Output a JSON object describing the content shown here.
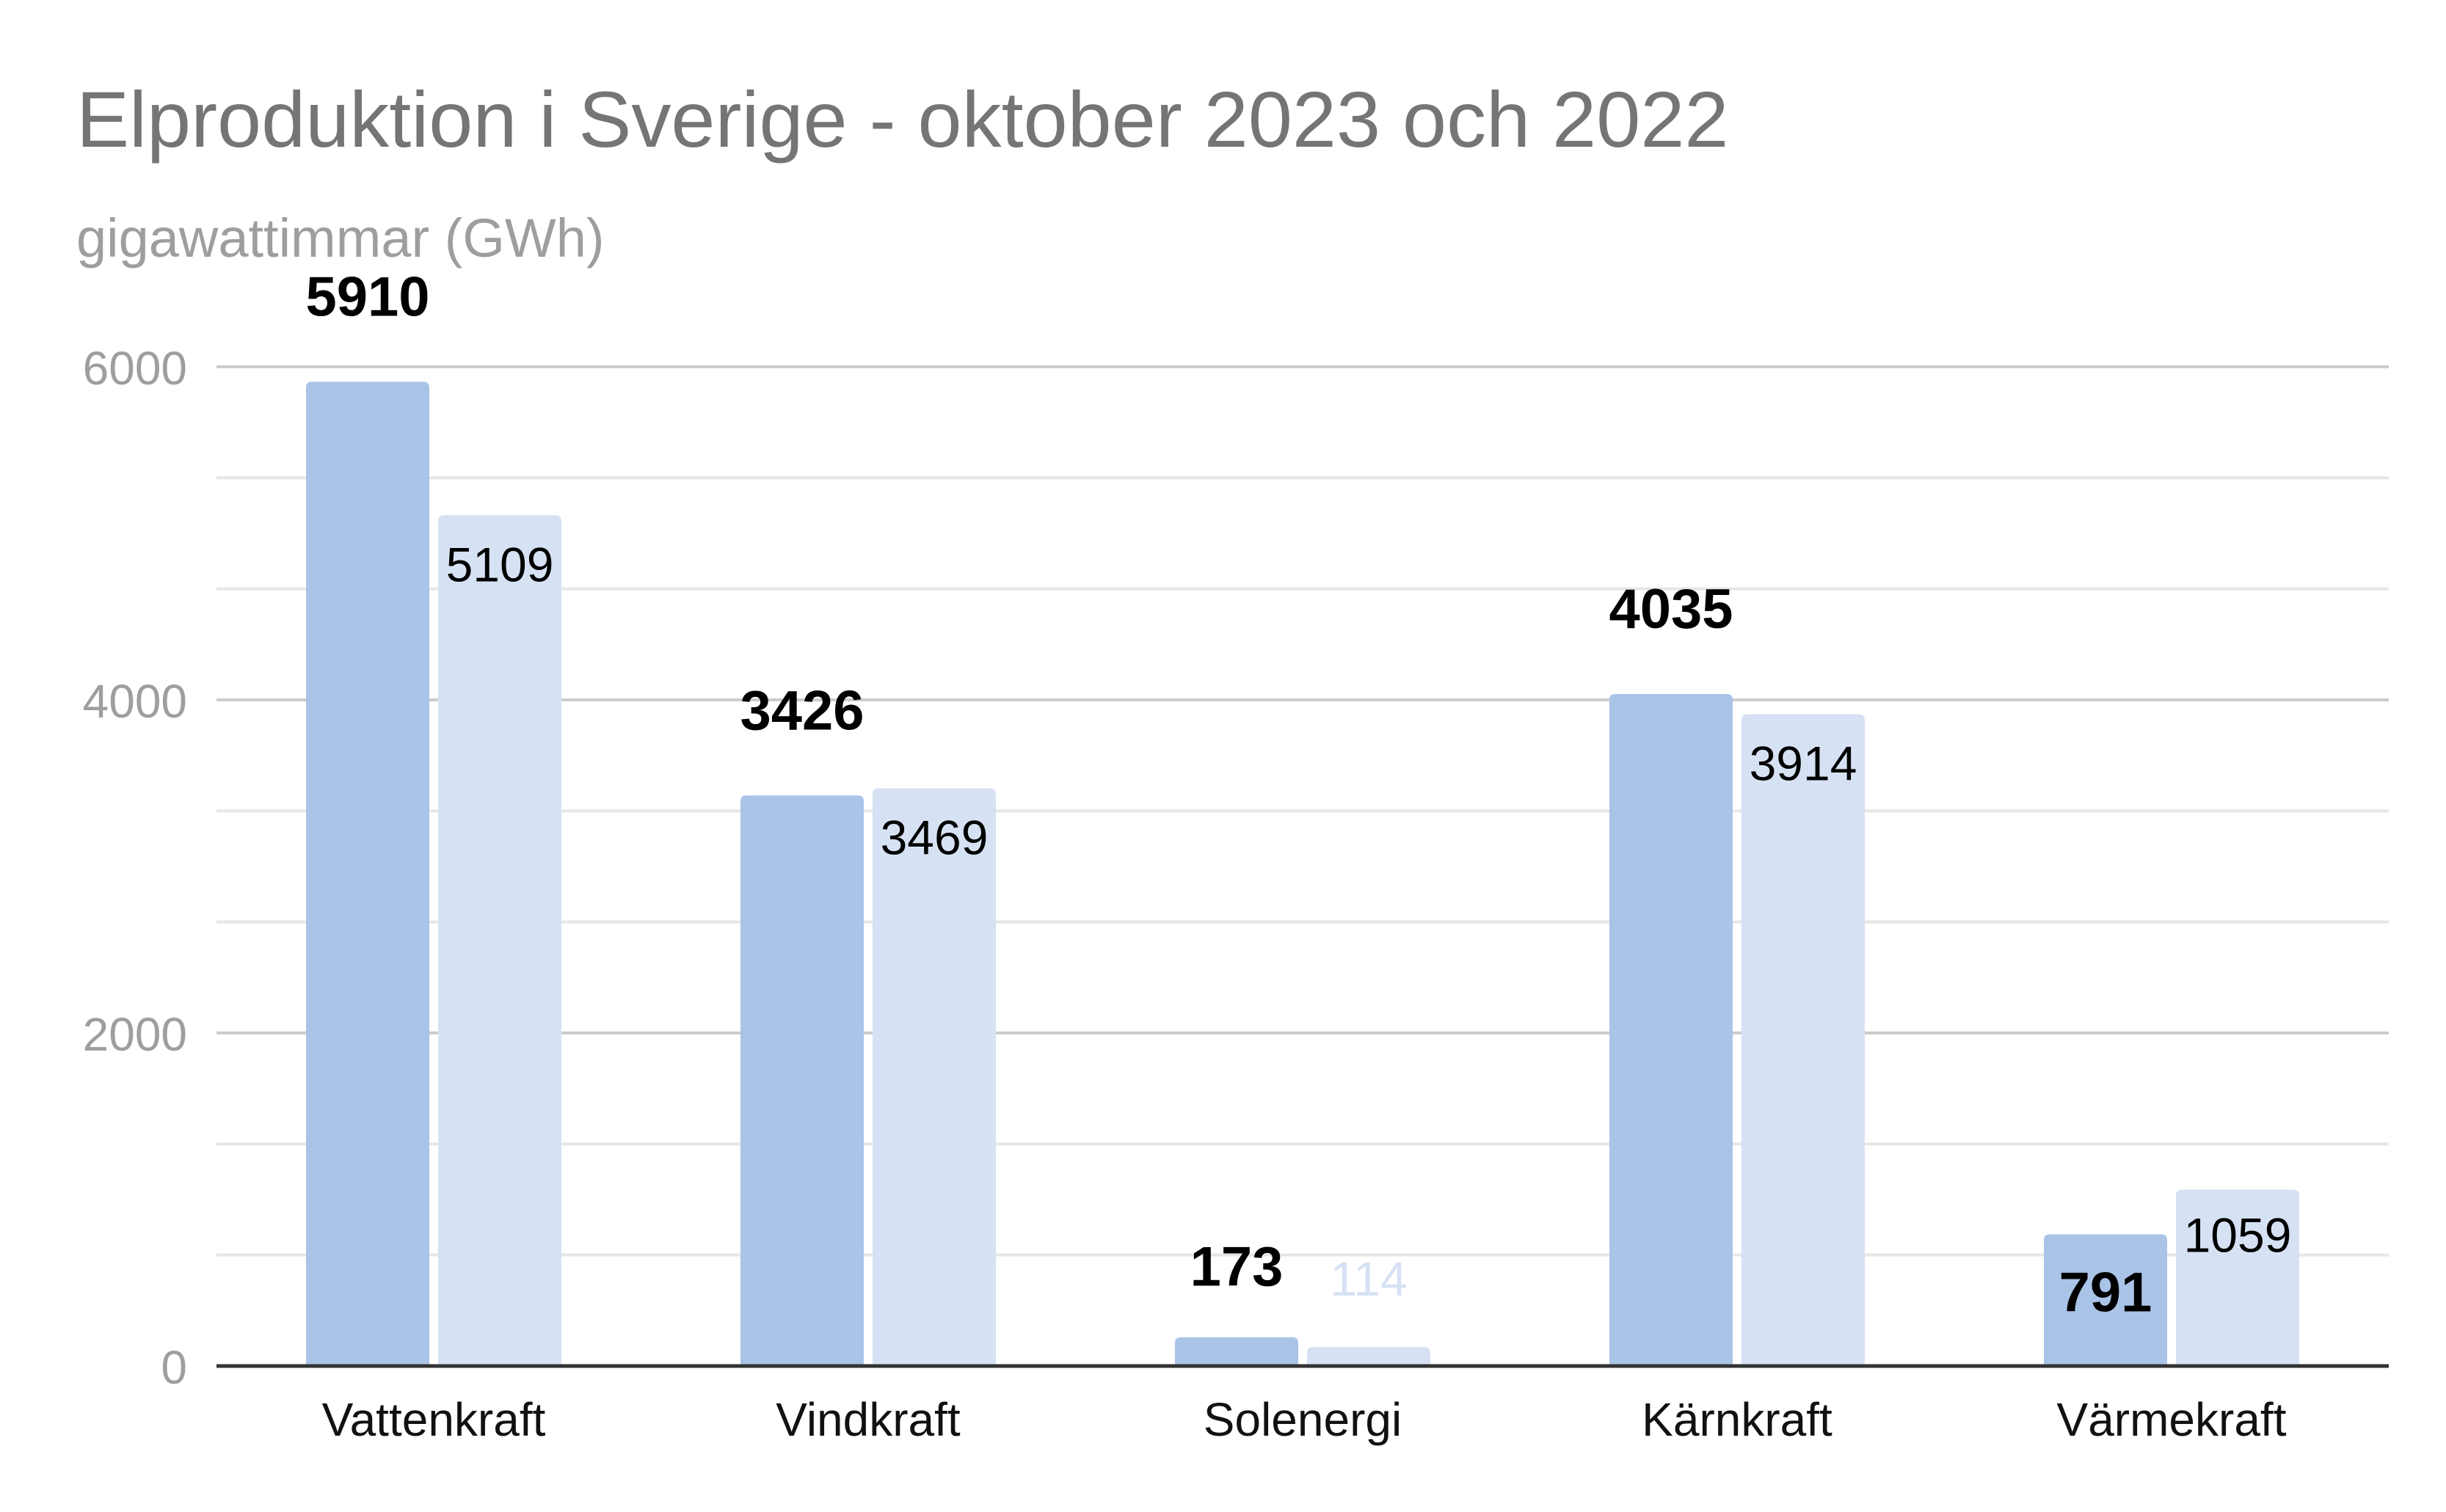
{
  "chart_data": {
    "type": "bar",
    "title": "Elproduktion i Sverige - oktober 2023 och 2022",
    "subtitle": "gigawattimmar (GWh)",
    "xlabel": "",
    "ylabel": "",
    "categories": [
      "Vattenkraft",
      "Vindkraft",
      "Solenergi",
      "Kärnkraft",
      "Värmekraft"
    ],
    "series": [
      {
        "values": [
          5910,
          3426,
          173,
          4035,
          791
        ],
        "color": "#aac4e8",
        "label_color": "#000000",
        "label_bold": true
      },
      {
        "values": [
          5109,
          3469,
          114,
          3914,
          1059
        ],
        "color": "#d6e2f3",
        "label_color": "#000000",
        "label_bold": false
      }
    ],
    "small_label_color": "#d6e2f3",
    "ylim": [
      0,
      6000
    ],
    "yticks": [
      0,
      2000,
      4000,
      6000
    ],
    "minor_gridlines": true,
    "grid": true,
    "legend": "none"
  }
}
